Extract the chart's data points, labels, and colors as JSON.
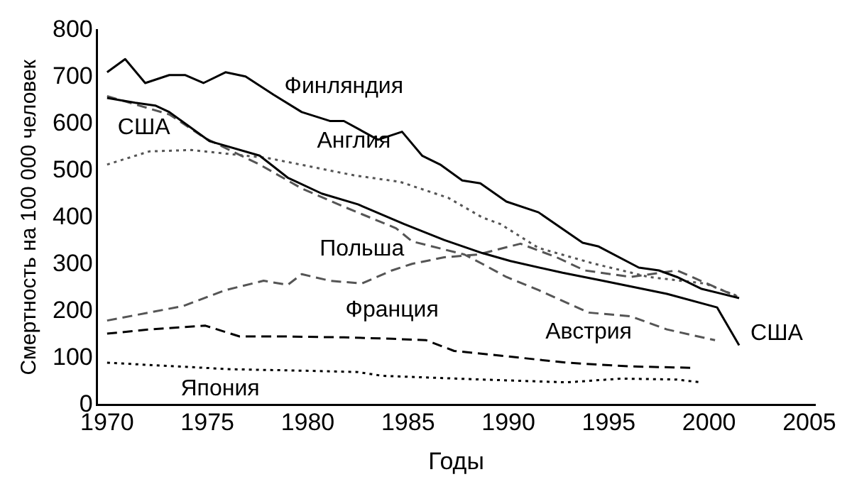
{
  "chart_data": {
    "type": "line",
    "xlabel": "Годы",
    "ylabel": "Смертность на 100 000 человек",
    "xlim": [
      1969.5,
      2005.3
    ],
    "xticks": [
      1970,
      1975,
      1980,
      1985,
      1990,
      1995,
      2000,
      2005
    ],
    "ylim": [
      0,
      800
    ],
    "yticks": [
      0,
      100,
      200,
      300,
      400,
      500,
      600,
      700,
      800
    ],
    "grid": false,
    "legend": false,
    "marker": "none",
    "series": [
      {
        "color": "#000000",
        "line_style": "solid",
        "x": [
          1970.0,
          1970.9,
          1971.9,
          1973.1,
          1973.9,
          1974.8,
          1975.9,
          1976.9,
          1978.3,
          1979.7,
          1981.1,
          1981.8,
          1983.5,
          1984.7,
          1985.7,
          1986.6,
          1987.7,
          1988.6,
          1989.9,
          1991.5,
          1993.7,
          1994.5,
          1996.5,
          1997.5,
          1998.4,
          1999.6,
          2001.5
        ],
        "values": [
          710,
          738,
          687,
          704,
          704,
          687,
          710,
          701,
          662,
          625,
          606,
          606,
          566,
          583,
          532,
          513,
          479,
          473,
          434,
          411,
          346,
          338,
          293,
          287,
          273,
          248,
          228
        ]
      },
      {
        "color": "#000000",
        "line_style": "solid",
        "x": [
          1970.0,
          1971.4,
          1972.4,
          1973.1,
          1975.1,
          1977.6,
          1979.0,
          1980.7,
          1982.5,
          1984.8,
          1986.8,
          1988.7,
          1990.1,
          1992.7,
          1994.7,
          1997.9,
          2000.4,
          2001.5
        ],
        "values": [
          655,
          645,
          639,
          625,
          563,
          532,
          485,
          451,
          428,
          386,
          352,
          324,
          307,
          282,
          265,
          237,
          208,
          127
        ]
      },
      {
        "color": "#555555",
        "line_style": "dotted",
        "x": [
          1970.0,
          1972.1,
          1974.2,
          1976.2,
          1978.0,
          1982.3,
          1984.6,
          1987.0,
          1988.7,
          1989.6,
          1991.5,
          1994.3,
          1997.0,
          1999.8,
          2001.5
        ],
        "values": [
          513,
          541,
          544,
          535,
          527,
          490,
          476,
          442,
          400,
          386,
          335,
          301,
          273,
          259,
          231
        ]
      },
      {
        "color": "#555555",
        "line_style": "dashed",
        "x": [
          1970.0,
          1973.1,
          1974.9,
          1977.6,
          1979.7,
          1981.8,
          1984.4,
          1985.2,
          1987.8,
          1988.7,
          1989.9,
          1991.5,
          1994.0,
          1996.1,
          1997.9,
          2000.3
        ],
        "values": [
          659,
          620,
          569,
          513,
          462,
          423,
          377,
          349,
          321,
          301,
          273,
          245,
          197,
          189,
          161,
          138
        ]
      },
      {
        "color": "#555555",
        "line_style": "dashed",
        "x": [
          1970.0,
          1973.8,
          1975.9,
          1977.8,
          1979.0,
          1979.7,
          1981.1,
          1982.7,
          1984.2,
          1985.2,
          1986.8,
          1988.5,
          1990.6,
          1992.4,
          1993.8,
          1996.1,
          1998.4,
          2001.4
        ],
        "values": [
          180,
          211,
          245,
          265,
          256,
          279,
          265,
          259,
          287,
          301,
          315,
          321,
          344,
          315,
          287,
          273,
          287,
          231
        ]
      },
      {
        "color": "#000000",
        "line_style": "dashed",
        "x": [
          1970.0,
          1972.1,
          1974.9,
          1976.6,
          1979.0,
          1981.8,
          1984.2,
          1985.9,
          1987.3,
          1989.2,
          1992.9,
          1996.1,
          1999.2
        ],
        "values": [
          152,
          161,
          169,
          146,
          146,
          144,
          141,
          138,
          115,
          107,
          90,
          82,
          79
        ]
      },
      {
        "color": "#000000",
        "line_style": "dotted",
        "x": [
          1970.0,
          1973.5,
          1976.2,
          1979.7,
          1982.5,
          1983.7,
          1988.7,
          1992.9,
          1995.6,
          1998.4,
          1999.6
        ],
        "values": [
          90,
          82,
          76,
          73,
          70,
          62,
          54,
          48,
          56,
          54,
          48
        ]
      }
    ],
    "annotations": [
      {
        "text": "Финляндия",
        "x": 1981.8,
        "y": 606
      },
      {
        "text": "США",
        "x": 1972.4,
        "y": 639
      },
      {
        "text": "Англия",
        "x": 1982.3,
        "y": 490
      },
      {
        "text": "Польша",
        "x": 1982.7,
        "y": 259
      },
      {
        "text": "Франция",
        "x": 1984.2,
        "y": 141
      },
      {
        "text": "Австрия",
        "x": 1994.0,
        "y": 197
      },
      {
        "text": "Япония",
        "x": 1976.2,
        "y": 76
      },
      {
        "text": "США",
        "x": 2001.5,
        "y": 127
      }
    ]
  }
}
